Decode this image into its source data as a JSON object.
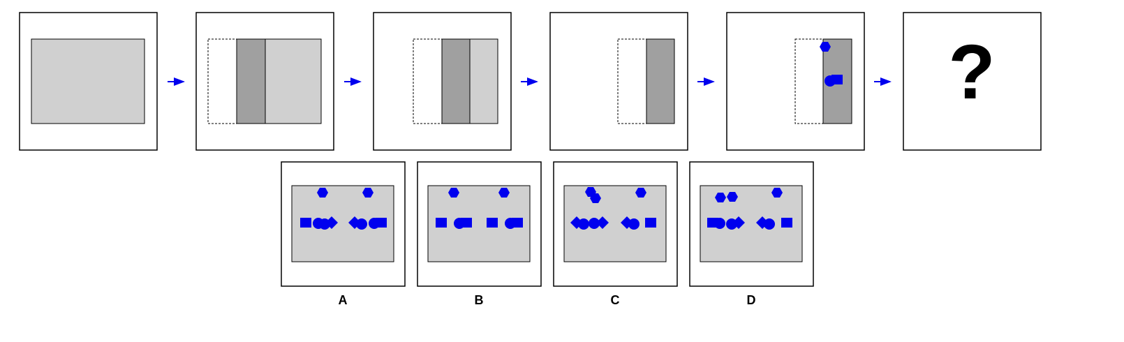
{
  "question_mark": "?",
  "options": [
    {
      "label": "A"
    },
    {
      "label": "B"
    },
    {
      "label": "C"
    },
    {
      "label": "D"
    }
  ]
}
